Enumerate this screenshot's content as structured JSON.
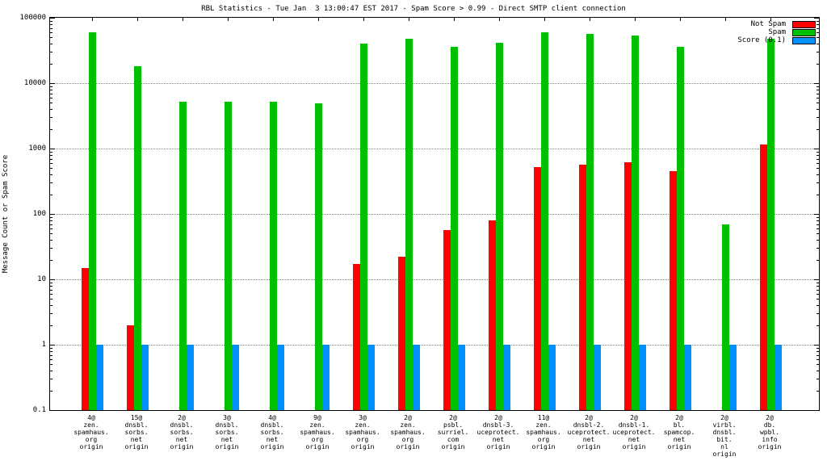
{
  "title": "RBL Statistics - Tue Jan  3 13:00:47 EST 2017 - Spam Score > 0.99 - Direct SMTP client connection",
  "ylabel": "Message Count or Spam Score",
  "chart_data": {
    "type": "bar",
    "yscale": "log",
    "ylim": [
      0.1,
      100000
    ],
    "yticks": [
      100000,
      10000,
      1000,
      100,
      10,
      1,
      0.1
    ],
    "ytick_labels": [
      "100000",
      "10000",
      "1000",
      "100",
      "10",
      "1",
      "0.1"
    ],
    "grid": true,
    "legend_position": "top-right",
    "categories": [
      [
        "4@",
        "zen.",
        "spamhaus.",
        "org",
        "origin"
      ],
      [
        "15@",
        "dnsbl.",
        "sorbs.",
        "net",
        "origin"
      ],
      [
        "2@",
        "dnsbl.",
        "sorbs.",
        "net",
        "origin"
      ],
      [
        "3@",
        "dnsbl.",
        "sorbs.",
        "net",
        "origin"
      ],
      [
        "4@",
        "dnsbl.",
        "sorbs.",
        "net",
        "origin"
      ],
      [
        "9@",
        "zen.",
        "spamhaus.",
        "org",
        "origin"
      ],
      [
        "3@",
        "zen.",
        "spamhaus.",
        "org",
        "origin"
      ],
      [
        "2@",
        "zen.",
        "spamhaus.",
        "org",
        "origin"
      ],
      [
        "2@",
        "psbl.",
        "surriel.",
        "com",
        "origin"
      ],
      [
        "2@",
        "dnsbl-3.",
        "uceprotect.",
        "net",
        "origin"
      ],
      [
        "11@",
        "zen.",
        "spamhaus.",
        "org",
        "origin"
      ],
      [
        "2@",
        "dnsbl-2.",
        "uceprotect.",
        "net",
        "origin"
      ],
      [
        "2@",
        "dnsbl-1.",
        "uceprotect.",
        "net",
        "origin"
      ],
      [
        "2@",
        "bl.",
        "spamcop.",
        "net",
        "origin"
      ],
      [
        "2@",
        "virbl.",
        "dnsbl.",
        "bit.",
        "nl",
        "origin"
      ],
      [
        "2@",
        "db.",
        "wpbl.",
        "info",
        "origin"
      ]
    ],
    "series": [
      {
        "name": "Not Spam",
        "color": "#ff0000",
        "values": [
          15,
          2,
          null,
          null,
          null,
          null,
          17,
          22,
          57,
          80,
          520,
          560,
          620,
          450,
          null,
          1150
        ]
      },
      {
        "name": "Spam",
        "color": "#00c000",
        "values": [
          60000,
          18000,
          5200,
          5200,
          5200,
          4900,
          40000,
          48000,
          36000,
          42000,
          60000,
          56000,
          54000,
          36000,
          70,
          48000
        ]
      },
      {
        "name": "Score (0.1)",
        "color": "#0090ff",
        "values": [
          1,
          1,
          1,
          1,
          1,
          1,
          1,
          1,
          1,
          1,
          1,
          1,
          1,
          1,
          1,
          1
        ]
      }
    ]
  }
}
